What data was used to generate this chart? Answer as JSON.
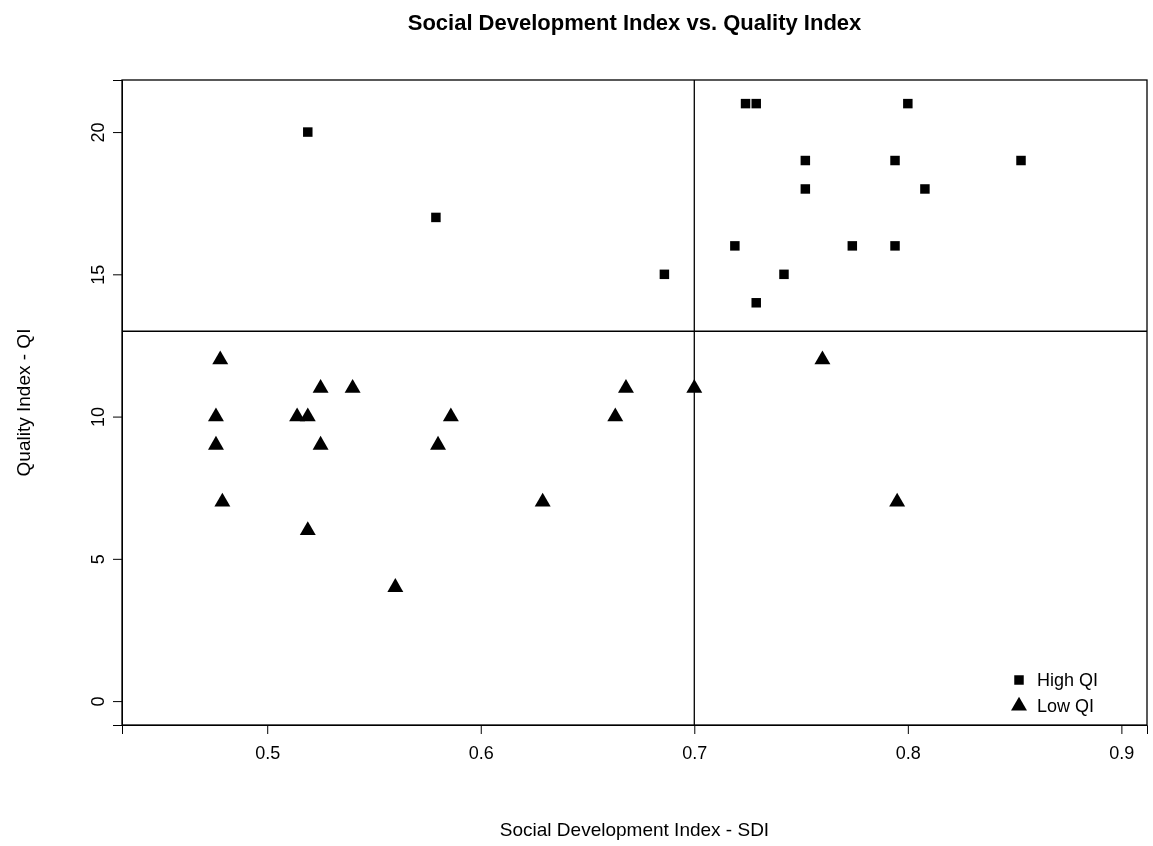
{
  "chart_data": {
    "type": "scatter",
    "title": "Social Development Index vs. Quality Index",
    "xlabel": "Social Development Index - SDI",
    "ylabel": "Quality Index - QI",
    "xlim": [
      0.432,
      0.912
    ],
    "ylim": [
      -0.84,
      21.83
    ],
    "xticks": [
      0.5,
      0.6,
      0.7,
      0.8,
      0.9
    ],
    "yticks": [
      0,
      5,
      10,
      15,
      20
    ],
    "grid": false,
    "legend": "bottom right",
    "series": [
      {
        "name": "High QI",
        "color": "#000000",
        "marker": "square",
        "x": [
          0.519,
          0.579,
          0.686,
          0.724,
          0.729,
          0.8,
          0.752,
          0.752,
          0.794,
          0.853,
          0.808,
          0.719,
          0.742,
          0.774,
          0.794,
          0.729
        ],
        "values": [
          20,
          17,
          15,
          21,
          21,
          21,
          19,
          18,
          19,
          19,
          18,
          16,
          15,
          16,
          16,
          14
        ]
      },
      {
        "name": "Low QI",
        "color": "#000000",
        "marker": "triangle",
        "x": [
          0.478,
          0.476,
          0.476,
          0.479,
          0.514,
          0.519,
          0.525,
          0.525,
          0.519,
          0.54,
          0.56,
          0.58,
          0.586,
          0.629,
          0.663,
          0.668,
          0.7,
          0.76,
          0.795
        ],
        "values": [
          12,
          10,
          9,
          7,
          10,
          10,
          11,
          9,
          6,
          11,
          4,
          9,
          10,
          7,
          10,
          11,
          11,
          12,
          7
        ]
      }
    ],
    "ref_lines": [
      {
        "axis": "y",
        "value": 13,
        "color": "#000000"
      },
      {
        "axis": "x",
        "value": 0.7,
        "color": "#000000"
      }
    ]
  }
}
